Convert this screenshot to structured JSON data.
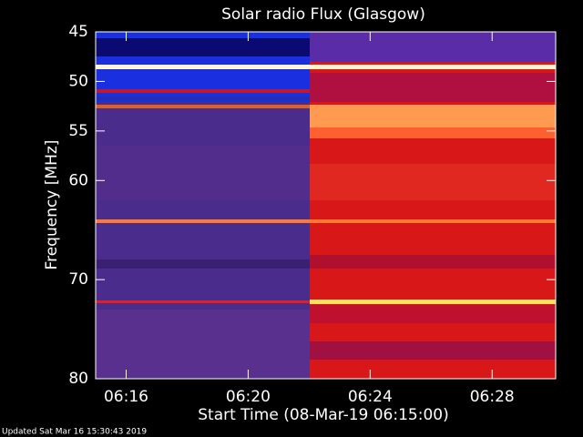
{
  "chart_data": {
    "type": "spectrogram",
    "title": "Solar radio Flux (Glasgow)",
    "x_label": "Start Time (08-Mar-19 06:15:00)",
    "y_label": "Frequency [MHz]",
    "xlim": [
      "06:15:00",
      "06:30:05"
    ],
    "xticks": [
      "06:16",
      "06:20",
      "06:24",
      "06:28"
    ],
    "ylim": [
      45,
      80
    ],
    "yticks": [
      45,
      50,
      55,
      60,
      70,
      80
    ],
    "footer": "Updated Sat Mar 16 15:30:43 2019"
  }
}
